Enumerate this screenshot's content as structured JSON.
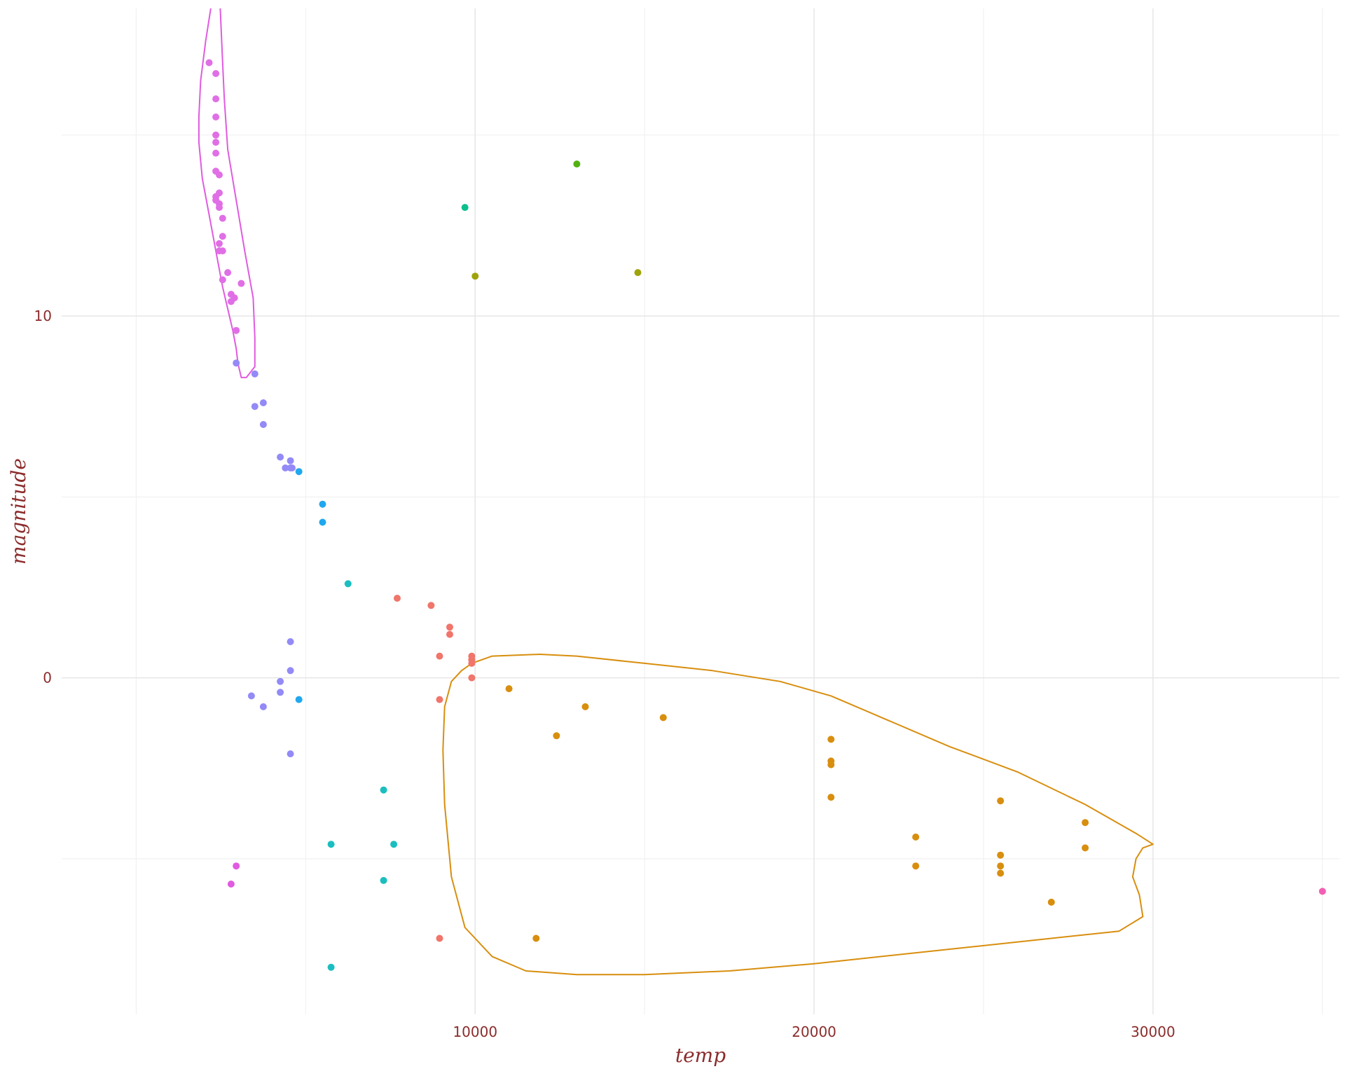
{
  "chart_data": {
    "type": "scatter",
    "xlabel": "temp",
    "ylabel": "magnitude",
    "xlim": [
      -2200,
      35500
    ],
    "ylim": [
      -9.3,
      18.5
    ],
    "xticks": [
      10000,
      20000,
      30000
    ],
    "xtick_labels": [
      "10000",
      "20000",
      "30000"
    ],
    "x_minor_ticks": [
      0,
      5000,
      15000,
      25000,
      35000
    ],
    "yticks": [
      0,
      10
    ],
    "ytick_labels": [
      "0",
      "10"
    ],
    "y_minor_ticks": [
      -5,
      5,
      15
    ],
    "grid": true,
    "legend": "none",
    "series": [
      {
        "color": "#e06fe6",
        "points": [
          [
            2150,
            17
          ],
          [
            2350,
            16.7
          ],
          [
            2350,
            16
          ],
          [
            2350,
            15.5
          ],
          [
            2350,
            15
          ],
          [
            2350,
            14.8
          ],
          [
            2350,
            14.5
          ],
          [
            2350,
            14
          ],
          [
            2450,
            13.9
          ],
          [
            2350,
            13.3
          ],
          [
            2350,
            13.2
          ],
          [
            2450,
            13.4
          ],
          [
            2450,
            13.1
          ],
          [
            2450,
            13
          ],
          [
            2550,
            12.7
          ],
          [
            2450,
            12
          ],
          [
            2550,
            11.8
          ],
          [
            2450,
            11.8
          ],
          [
            2550,
            12.2
          ],
          [
            2700,
            11.2
          ],
          [
            2550,
            11
          ],
          [
            3100,
            10.9
          ],
          [
            2800,
            10.6
          ],
          [
            2800,
            10.4
          ],
          [
            2900,
            10.5
          ],
          [
            2950,
            9.6
          ]
        ]
      },
      {
        "color": "#e05be0",
        "points": [
          [
            2950,
            -5.2
          ],
          [
            2800,
            -5.7
          ]
        ]
      },
      {
        "color": "#938af7",
        "points": [
          [
            2950,
            8.7
          ],
          [
            3500,
            8.4
          ],
          [
            3500,
            7.5
          ],
          [
            3750,
            7.6
          ],
          [
            3750,
            7
          ],
          [
            4250,
            6.1
          ],
          [
            4400,
            5.8
          ],
          [
            4550,
            5.8
          ],
          [
            4550,
            6
          ],
          [
            4600,
            5.8
          ],
          [
            4550,
            1
          ],
          [
            4550,
            0.2
          ],
          [
            4250,
            -0.1
          ],
          [
            4250,
            -0.4
          ],
          [
            3750,
            -0.8
          ],
          [
            3400,
            -0.5
          ],
          [
            4550,
            -2.1
          ]
        ]
      },
      {
        "color": "#20a8ee",
        "points": [
          [
            4800,
            5.7
          ],
          [
            5500,
            4.8
          ],
          [
            5500,
            4.3
          ],
          [
            4800,
            -0.6
          ]
        ]
      },
      {
        "color": "#1bbec0",
        "points": [
          [
            6250,
            2.6
          ],
          [
            5750,
            -4.6
          ],
          [
            7300,
            -3.1
          ],
          [
            7600,
            -4.6
          ],
          [
            7300,
            -5.6
          ],
          [
            5750,
            -8
          ]
        ]
      },
      {
        "color": "#f0756a",
        "points": [
          [
            7700,
            2.2
          ],
          [
            8700,
            2
          ],
          [
            9250,
            1.4
          ],
          [
            9250,
            1.2
          ],
          [
            8950,
            0.6
          ],
          [
            9900,
            0.6
          ],
          [
            9900,
            0.5
          ],
          [
            9900,
            0.4
          ],
          [
            9900,
            0
          ],
          [
            8950,
            -0.6
          ],
          [
            8950,
            -7.2
          ]
        ]
      },
      {
        "color": "#d88e0e",
        "points": [
          [
            11000,
            -0.3
          ],
          [
            13250,
            -0.8
          ],
          [
            15550,
            -1.1
          ],
          [
            12400,
            -1.6
          ],
          [
            20500,
            -1.7
          ],
          [
            20500,
            -2.3
          ],
          [
            20500,
            -2.4
          ],
          [
            20500,
            -3.3
          ],
          [
            23000,
            -4.4
          ],
          [
            25500,
            -3.4
          ],
          [
            28000,
            -4
          ],
          [
            25500,
            -4.9
          ],
          [
            28000,
            -4.7
          ],
          [
            25500,
            -5.2
          ],
          [
            25500,
            -5.4
          ],
          [
            23000,
            -5.2
          ],
          [
            27000,
            -6.2
          ],
          [
            11800,
            -7.2
          ]
        ]
      },
      {
        "color": "#52b212",
        "points": [
          [
            13000,
            14.2
          ]
        ]
      },
      {
        "color": "#0bbf8c",
        "points": [
          [
            9700,
            13
          ]
        ]
      },
      {
        "color": "#9fa30a",
        "points": [
          [
            10000,
            11.1
          ],
          [
            14800,
            11.2
          ]
        ]
      },
      {
        "color": "#f45fb3",
        "points": [
          [
            35000,
            -5.9
          ]
        ]
      }
    ],
    "contours": [
      {
        "color": "#e05be0",
        "points": [
          [
            2200,
            18.5
          ],
          [
            2050,
            17.6
          ],
          [
            1900,
            16.5
          ],
          [
            1850,
            15.5
          ],
          [
            1850,
            14.8
          ],
          [
            1950,
            13.8
          ],
          [
            2150,
            12.8
          ],
          [
            2350,
            11.8
          ],
          [
            2550,
            10.8
          ],
          [
            2750,
            10
          ],
          [
            2850,
            9.6
          ],
          [
            2950,
            9.1
          ],
          [
            3000,
            8.7
          ],
          [
            3100,
            8.3
          ],
          [
            3250,
            8.3
          ],
          [
            3500,
            8.6
          ],
          [
            3500,
            9.4
          ],
          [
            3450,
            10.5
          ],
          [
            3200,
            11.8
          ],
          [
            2950,
            13.2
          ],
          [
            2700,
            14.6
          ],
          [
            2600,
            16
          ],
          [
            2550,
            17
          ],
          [
            2480,
            18.5
          ]
        ]
      },
      {
        "color": "#d88e0e",
        "points": [
          [
            9900,
            0.4
          ],
          [
            10500,
            0.6
          ],
          [
            11900,
            0.65
          ],
          [
            13000,
            0.6
          ],
          [
            15000,
            0.4
          ],
          [
            17000,
            0.2
          ],
          [
            19000,
            -0.1
          ],
          [
            20500,
            -0.5
          ],
          [
            22000,
            -1.1
          ],
          [
            24000,
            -1.9
          ],
          [
            26000,
            -2.6
          ],
          [
            28000,
            -3.5
          ],
          [
            29500,
            -4.3
          ],
          [
            30000,
            -4.6
          ],
          [
            29700,
            -4.7
          ],
          [
            29500,
            -5
          ],
          [
            29400,
            -5.5
          ],
          [
            29600,
            -6
          ],
          [
            29700,
            -6.6
          ],
          [
            29000,
            -7
          ],
          [
            27000,
            -7.2
          ],
          [
            24000,
            -7.5
          ],
          [
            20000,
            -7.9
          ],
          [
            17500,
            -8.1
          ],
          [
            15000,
            -8.2
          ],
          [
            13000,
            -8.2
          ],
          [
            11500,
            -8.1
          ],
          [
            10500,
            -7.7
          ],
          [
            9700,
            -6.9
          ],
          [
            9300,
            -5.5
          ],
          [
            9100,
            -3.5
          ],
          [
            9050,
            -2
          ],
          [
            9100,
            -0.8
          ],
          [
            9300,
            -0.1
          ],
          [
            9600,
            0.2
          ],
          [
            9900,
            0.4
          ]
        ]
      }
    ]
  }
}
